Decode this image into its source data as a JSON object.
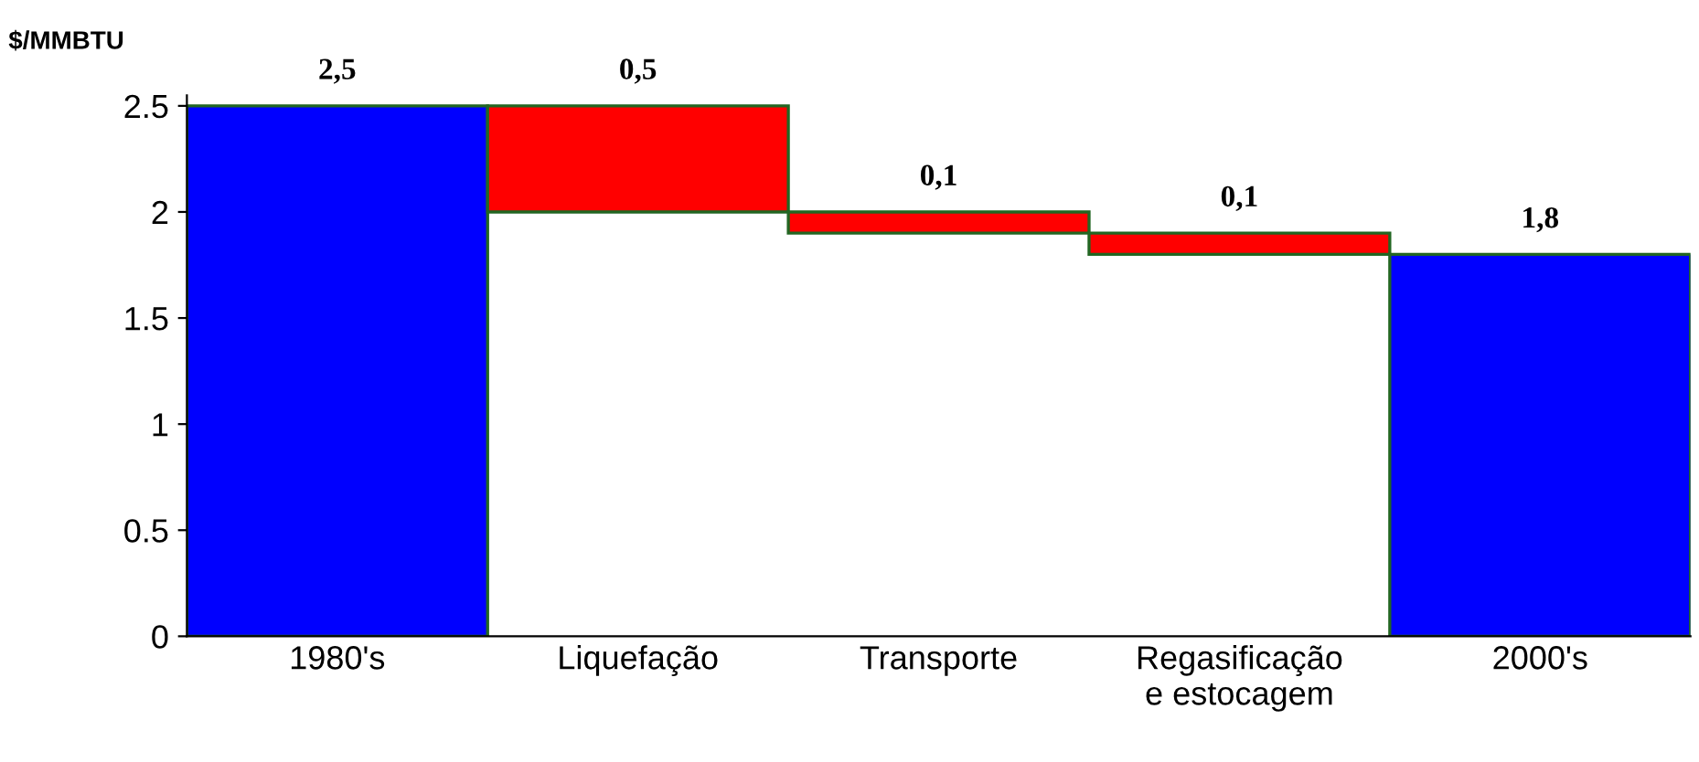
{
  "chart_data": {
    "type": "bar",
    "ylabel": "$/MMBTU",
    "categories": [
      "1980's",
      "Liquefação",
      "Transporte",
      "Regasificação\ne estocagem",
      "2000's"
    ],
    "values": [
      2.5,
      0.5,
      0.1,
      0.1,
      1.8
    ],
    "base": [
      0,
      2.0,
      1.9,
      1.8,
      0
    ],
    "colors": [
      "#0000ff",
      "#ff0000",
      "#ff0000",
      "#ff0000",
      "#0000ff"
    ],
    "value_labels": [
      "2,5",
      "0,5",
      "0,1",
      "0,1",
      "1,8"
    ],
    "ylim": [
      0,
      2.55
    ],
    "yticks": [
      0,
      0.5,
      1,
      1.5,
      2,
      2.5
    ],
    "grid": false,
    "legend": false
  }
}
